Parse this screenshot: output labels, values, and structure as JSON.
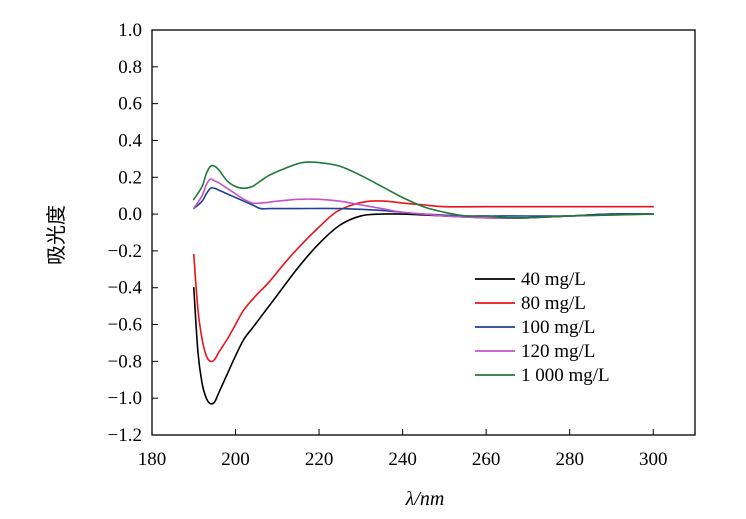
{
  "chart_data": {
    "type": "line",
    "xlabel": "λ/nm",
    "ylabel": "吸光度",
    "xlim": [
      180,
      310
    ],
    "ylim": [
      -1.2,
      1.0
    ],
    "x_ticks": [
      "180",
      "200",
      "220",
      "240",
      "260",
      "280",
      "300"
    ],
    "y_ticks": [
      "1.0",
      "0.8",
      "0.6",
      "0.4",
      "0.2",
      "0.0",
      "−0.2",
      "−0.4",
      "−0.6",
      "−0.8",
      "−1.0",
      "−1.2"
    ],
    "grid": false,
    "legend_position": "right",
    "series": [
      {
        "name": "40 mg/L",
        "color": "#000000",
        "points": [
          [
            190,
            -0.4
          ],
          [
            191,
            -0.75
          ],
          [
            192,
            -0.92
          ],
          [
            193,
            -1.0
          ],
          [
            194,
            -1.03
          ],
          [
            195,
            -1.02
          ],
          [
            196,
            -0.97
          ],
          [
            198,
            -0.87
          ],
          [
            200,
            -0.77
          ],
          [
            202,
            -0.68
          ],
          [
            204,
            -0.62
          ],
          [
            206,
            -0.56
          ],
          [
            210,
            -0.44
          ],
          [
            215,
            -0.29
          ],
          [
            220,
            -0.16
          ],
          [
            225,
            -0.06
          ],
          [
            230,
            -0.01
          ],
          [
            235,
            0.0
          ],
          [
            240,
            0.0
          ],
          [
            250,
            -0.01
          ],
          [
            260,
            -0.02
          ],
          [
            270,
            -0.02
          ],
          [
            280,
            -0.01
          ],
          [
            290,
            0.0
          ],
          [
            300,
            0.0
          ]
        ]
      },
      {
        "name": "80 mg/L",
        "color": "#e8141c",
        "points": [
          [
            190,
            -0.22
          ],
          [
            191,
            -0.52
          ],
          [
            192,
            -0.68
          ],
          [
            193,
            -0.77
          ],
          [
            194,
            -0.8
          ],
          [
            195,
            -0.79
          ],
          [
            196,
            -0.75
          ],
          [
            198,
            -0.68
          ],
          [
            200,
            -0.6
          ],
          [
            202,
            -0.52
          ],
          [
            205,
            -0.44
          ],
          [
            208,
            -0.37
          ],
          [
            212,
            -0.26
          ],
          [
            216,
            -0.16
          ],
          [
            220,
            -0.07
          ],
          [
            224,
            0.01
          ],
          [
            228,
            0.05
          ],
          [
            232,
            0.07
          ],
          [
            236,
            0.07
          ],
          [
            240,
            0.06
          ],
          [
            245,
            0.05
          ],
          [
            250,
            0.04
          ],
          [
            260,
            0.04
          ],
          [
            280,
            0.04
          ],
          [
            300,
            0.04
          ]
        ]
      },
      {
        "name": "100 mg/L",
        "color": "#1f3f9a",
        "points": [
          [
            190,
            0.03
          ],
          [
            192,
            0.07
          ],
          [
            193,
            0.11
          ],
          [
            194,
            0.14
          ],
          [
            195,
            0.14
          ],
          [
            196,
            0.13
          ],
          [
            198,
            0.11
          ],
          [
            200,
            0.09
          ],
          [
            202,
            0.07
          ],
          [
            204,
            0.05
          ],
          [
            206,
            0.03
          ],
          [
            208,
            0.03
          ],
          [
            215,
            0.03
          ],
          [
            225,
            0.03
          ],
          [
            235,
            0.02
          ],
          [
            245,
            0.0
          ],
          [
            255,
            -0.01
          ],
          [
            265,
            -0.01
          ],
          [
            280,
            -0.01
          ],
          [
            290,
            0.0
          ],
          [
            300,
            0.0
          ]
        ]
      },
      {
        "name": "120 mg/L",
        "color": "#c452c8",
        "points": [
          [
            190,
            0.03
          ],
          [
            192,
            0.1
          ],
          [
            193,
            0.16
          ],
          [
            194,
            0.19
          ],
          [
            195,
            0.18
          ],
          [
            196,
            0.17
          ],
          [
            198,
            0.14
          ],
          [
            200,
            0.11
          ],
          [
            202,
            0.08
          ],
          [
            204,
            0.06
          ],
          [
            206,
            0.06
          ],
          [
            210,
            0.07
          ],
          [
            215,
            0.08
          ],
          [
            220,
            0.08
          ],
          [
            225,
            0.07
          ],
          [
            230,
            0.05
          ],
          [
            235,
            0.03
          ],
          [
            240,
            0.01
          ],
          [
            245,
            0.0
          ],
          [
            250,
            -0.01
          ],
          [
            260,
            -0.02
          ],
          [
            270,
            -0.02
          ],
          [
            280,
            -0.01
          ],
          [
            300,
            0.0
          ]
        ]
      },
      {
        "name": "1 000 mg/L",
        "color": "#1e7a3a",
        "points": [
          [
            190,
            0.08
          ],
          [
            192,
            0.15
          ],
          [
            193,
            0.22
          ],
          [
            194,
            0.26
          ],
          [
            195,
            0.26
          ],
          [
            196,
            0.24
          ],
          [
            198,
            0.18
          ],
          [
            200,
            0.15
          ],
          [
            202,
            0.14
          ],
          [
            204,
            0.15
          ],
          [
            206,
            0.18
          ],
          [
            208,
            0.21
          ],
          [
            212,
            0.25
          ],
          [
            216,
            0.28
          ],
          [
            220,
            0.28
          ],
          [
            225,
            0.26
          ],
          [
            230,
            0.21
          ],
          [
            235,
            0.15
          ],
          [
            240,
            0.09
          ],
          [
            245,
            0.04
          ],
          [
            250,
            0.01
          ],
          [
            255,
            -0.01
          ],
          [
            260,
            -0.01
          ],
          [
            265,
            -0.02
          ],
          [
            270,
            -0.02
          ],
          [
            280,
            -0.01
          ],
          [
            300,
            0.0
          ]
        ]
      }
    ]
  }
}
